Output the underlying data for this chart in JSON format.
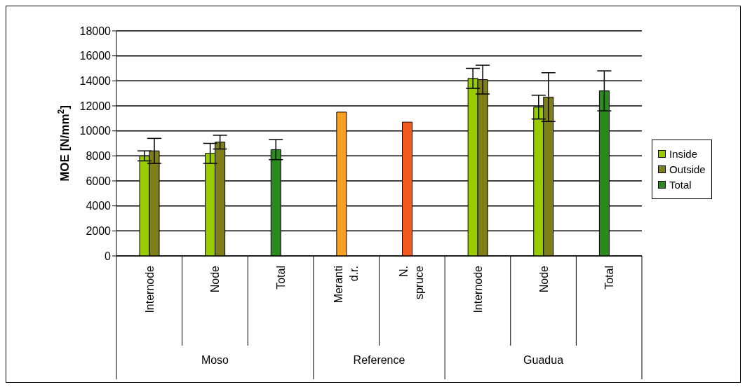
{
  "chart_data": {
    "type": "bar",
    "ylabel": "MOE [N/mm$^{2}$]",
    "categories": [
      "Internode",
      "Node",
      "Total",
      "Meranti d.r.",
      "N. spruce",
      "Internode",
      "Node",
      "Total"
    ],
    "annotations": [
      "Moso",
      "Reference",
      "Guadua"
    ],
    "series": [
      {
        "name": "Inside",
        "color": "#99cc00",
        "values": [
          8000,
          8200,
          null,
          null,
          null,
          14200,
          11900,
          null
        ],
        "errors": [
          400,
          800,
          null,
          null,
          null,
          800,
          950,
          null
        ]
      },
      {
        "name": "Outside",
        "color": "#7f7f1a",
        "values": [
          8400,
          9100,
          null,
          null,
          null,
          14100,
          12700,
          null
        ],
        "errors": [
          1000,
          550,
          null,
          null,
          null,
          1150,
          1950,
          null
        ]
      },
      {
        "name": "Total",
        "color": "#2a8a1e",
        "values": [
          null,
          null,
          8500,
          null,
          null,
          null,
          null,
          13200
        ],
        "errors": [
          null,
          null,
          800,
          null,
          null,
          null,
          null,
          1600
        ]
      },
      {
        "colors": [
          null,
          null,
          null,
          "#f7a021",
          "#f05a1e",
          null,
          null,
          null
        ],
        "values": [
          null,
          null,
          null,
          11500,
          10700,
          null,
          null,
          null
        ]
      }
    ],
    "ylim": [
      0,
      18000
    ],
    "yticks": [
      0,
      2000,
      4000,
      6000,
      8000,
      10000,
      12000,
      14000,
      16000,
      18000
    ],
    "grid": "y",
    "legend": "right"
  }
}
